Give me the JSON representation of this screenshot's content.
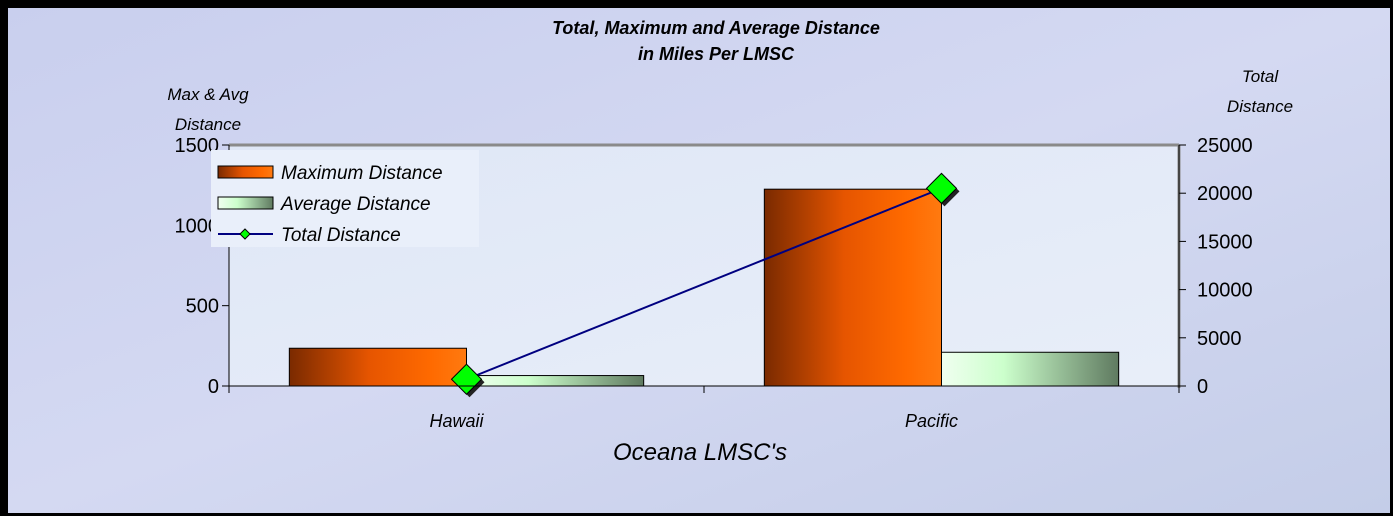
{
  "chart_data": {
    "type": "bar",
    "title": "Total, Maximum and Average Distance",
    "subtitle": "in Miles Per LMSC",
    "xlabel": "Oceana LMSC's",
    "ylabel": "Max & Avg Distance",
    "y2label": "Total Distance",
    "categories": [
      "Hawaii",
      "Pacific"
    ],
    "ylim": [
      0,
      1500
    ],
    "y2lim": [
      0,
      25000
    ],
    "yticks": [
      "0",
      "500",
      "1000",
      "1500"
    ],
    "y2ticks": [
      "0",
      "5000",
      "10000",
      "15000",
      "20000",
      "25000"
    ],
    "legend_position": "top-left",
    "series": [
      {
        "name": "Maximum Distance",
        "type": "bar",
        "axis": "left",
        "values": [
          235,
          1225
        ],
        "color": "#ff6600"
      },
      {
        "name": "Average Distance",
        "type": "bar",
        "axis": "left",
        "values": [
          65,
          210
        ],
        "color": "#ccffcc"
      },
      {
        "name": "Total Distance",
        "type": "line",
        "axis": "right",
        "values": [
          700,
          20500
        ],
        "color": "#000080",
        "marker_color": "#00ff00"
      }
    ]
  }
}
